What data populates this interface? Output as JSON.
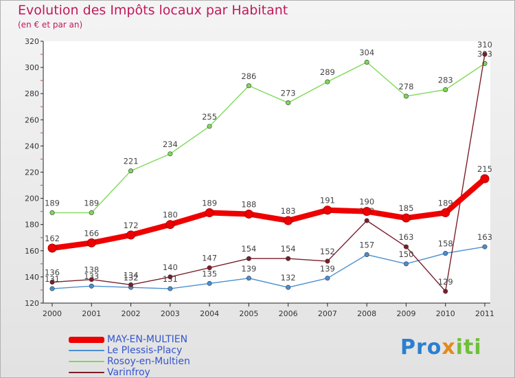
{
  "title": "Evolution des Impôts locaux par Habitant",
  "subtitle": "(en € et par an)",
  "brand": "Proxiti",
  "chart_data": {
    "type": "line",
    "categories": [
      "2000",
      "2001",
      "2002",
      "2003",
      "2004",
      "2005",
      "2006",
      "2007",
      "2008",
      "2009",
      "2010",
      "2011"
    ],
    "ylim": [
      120,
      320
    ],
    "yticks": [
      120,
      140,
      160,
      180,
      200,
      220,
      240,
      260,
      280,
      300,
      320
    ],
    "grid": false,
    "legend_position": "bottom-left",
    "series": [
      {
        "name": "MAY-EN-MULTIEN",
        "color": "#ee0000",
        "values": [
          162,
          166,
          172,
          180,
          189,
          188,
          183,
          191,
          190,
          185,
          189,
          215
        ]
      },
      {
        "name": "Le Plessis-Placy",
        "color": "#4a8fd0",
        "values": [
          131,
          133,
          132,
          131,
          135,
          139,
          132,
          139,
          157,
          150,
          158,
          163
        ]
      },
      {
        "name": "Rosoy-en-Multien",
        "color": "#7ed957",
        "values": [
          189,
          189,
          221,
          234,
          255,
          286,
          273,
          289,
          304,
          278,
          283,
          303
        ]
      },
      {
        "name": "Varinfroy",
        "color": "#7a1f2a",
        "values": [
          136,
          138,
          134,
          140,
          147,
          154,
          154,
          152,
          183,
          163,
          129,
          310
        ]
      }
    ]
  }
}
